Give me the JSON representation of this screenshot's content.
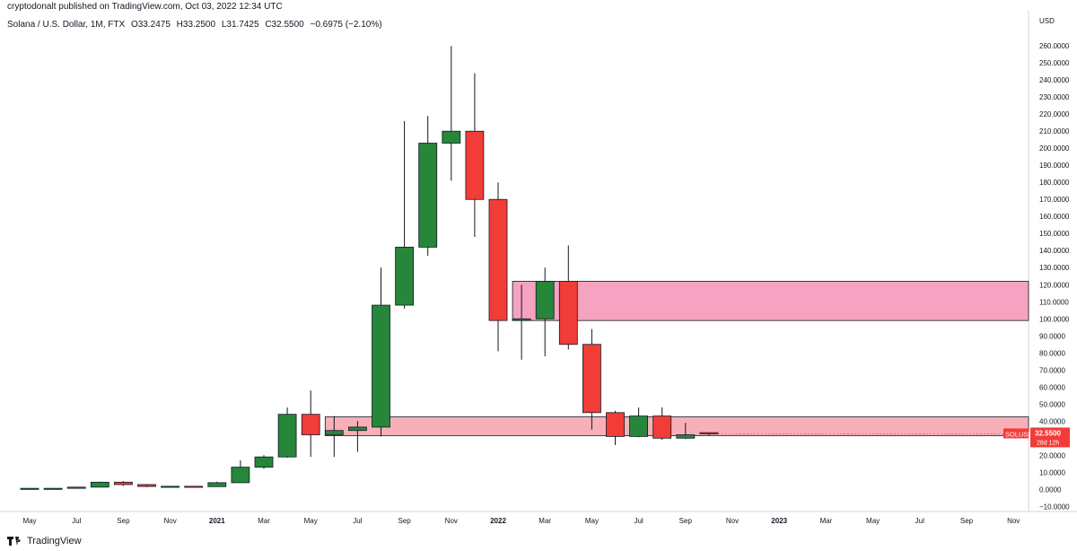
{
  "header": {
    "published_line": "cryptodonalt published on TradingView.com, Oct 03, 2022 12:34 UTC"
  },
  "legend": {
    "symbol_line": "Solana / U.S. Dollar, 1M, FTX",
    "open": "O33.2475",
    "high": "H33.2500",
    "low": "L31.7425",
    "close": "C32.5500",
    "change": "−0.6975 (−2.10%)"
  },
  "footer": {
    "brand": "TradingView"
  },
  "price_tag": {
    "symbol": "SOLUSD",
    "price": "32.5500",
    "countdown": "28d 12h"
  },
  "colors": {
    "up": "#26863a",
    "down": "#f23c37",
    "zone_upper": "#f5a3c0",
    "zone_lower": "#f7b0b8",
    "tag": "#f23c37"
  },
  "chart_data": {
    "type": "candlestick",
    "currency_label": "USD",
    "y_ticks": [
      "260.0000",
      "250.0000",
      "240.0000",
      "230.0000",
      "220.0000",
      "210.0000",
      "200.0000",
      "190.0000",
      "180.0000",
      "170.0000",
      "160.0000",
      "150.0000",
      "140.0000",
      "130.0000",
      "120.0000",
      "110.0000",
      "100.0000",
      "90.0000",
      "80.0000",
      "70.0000",
      "60.0000",
      "50.0000",
      "40.0000",
      "30.0000",
      "20.0000",
      "10.0000",
      "0.0000",
      "−10.0000"
    ],
    "ylim": [
      -13,
      268
    ],
    "x_labels": [
      "May",
      "Jul",
      "Sep",
      "Nov",
      "2021",
      "Mar",
      "May",
      "Jul",
      "Sep",
      "Nov",
      "2022",
      "Mar",
      "May",
      "Jul",
      "Sep",
      "Nov",
      "2023",
      "Mar",
      "May",
      "Jul",
      "Sep",
      "Nov"
    ],
    "x_label_months": [
      0,
      2,
      4,
      6,
      8,
      10,
      12,
      14,
      16,
      18,
      20,
      22,
      24,
      26,
      28,
      30,
      32,
      34,
      36,
      38,
      40,
      42
    ],
    "month_range": [
      0,
      43
    ],
    "candles": [
      {
        "m": 0,
        "o": 0.5,
        "h": 0.8,
        "l": 0.3,
        "c": 0.6
      },
      {
        "m": 1,
        "o": 0.6,
        "h": 0.9,
        "l": 0.4,
        "c": 0.6
      },
      {
        "m": 2,
        "o": 0.6,
        "h": 1.5,
        "l": 0.5,
        "c": 1.3
      },
      {
        "m": 3,
        "o": 1.3,
        "h": 4.5,
        "l": 1.2,
        "c": 4.2
      },
      {
        "m": 4,
        "o": 4.2,
        "h": 4.8,
        "l": 2.0,
        "c": 2.8
      },
      {
        "m": 5,
        "o": 2.8,
        "h": 3.0,
        "l": 1.3,
        "c": 1.7
      },
      {
        "m": 6,
        "o": 1.7,
        "h": 2.1,
        "l": 1.3,
        "c": 1.8
      },
      {
        "m": 7,
        "o": 1.8,
        "h": 2.0,
        "l": 1.4,
        "c": 1.6
      },
      {
        "m": 8,
        "o": 1.6,
        "h": 4.5,
        "l": 1.5,
        "c": 3.9
      },
      {
        "m": 9,
        "o": 3.9,
        "h": 17.0,
        "l": 3.8,
        "c": 13.0
      },
      {
        "m": 10,
        "o": 13.0,
        "h": 20.0,
        "l": 12.0,
        "c": 19.0
      },
      {
        "m": 11,
        "o": 19.0,
        "h": 48.0,
        "l": 18.5,
        "c": 44.0
      },
      {
        "m": 12,
        "o": 44.0,
        "h": 58.0,
        "l": 19.0,
        "c": 32.0
      },
      {
        "m": 13,
        "o": 32.0,
        "h": 43.0,
        "l": 19.0,
        "c": 34.5
      },
      {
        "m": 14,
        "o": 34.5,
        "h": 40.0,
        "l": 22.0,
        "c": 36.5
      },
      {
        "m": 15,
        "o": 36.5,
        "h": 130.0,
        "l": 31.0,
        "c": 108.0
      },
      {
        "m": 16,
        "o": 108.0,
        "h": 216.0,
        "l": 106.0,
        "c": 142.0
      },
      {
        "m": 17,
        "o": 142.0,
        "h": 219.0,
        "l": 137.0,
        "c": 203.0
      },
      {
        "m": 18,
        "o": 203.0,
        "h": 260.0,
        "l": 181.0,
        "c": 210.0
      },
      {
        "m": 19,
        "o": 210.0,
        "h": 244.0,
        "l": 148.0,
        "c": 170.0
      },
      {
        "m": 20,
        "o": 170.0,
        "h": 180.0,
        "l": 81.0,
        "c": 99.0
      },
      {
        "m": 21,
        "o": 99.0,
        "h": 120.0,
        "l": 76.0,
        "c": 100.0
      },
      {
        "m": 22,
        "o": 100.0,
        "h": 130.0,
        "l": 78.0,
        "c": 122.0
      },
      {
        "m": 23,
        "o": 122.0,
        "h": 143.0,
        "l": 82.0,
        "c": 85.0
      },
      {
        "m": 24,
        "o": 85.0,
        "h": 94.0,
        "l": 35.0,
        "c": 45.0
      },
      {
        "m": 25,
        "o": 45.0,
        "h": 46.0,
        "l": 26.0,
        "c": 31.0
      },
      {
        "m": 26,
        "o": 31.0,
        "h": 48.0,
        "l": 30.5,
        "c": 43.0
      },
      {
        "m": 27,
        "o": 43.0,
        "h": 48.0,
        "l": 29.0,
        "c": 30.0
      },
      {
        "m": 28,
        "o": 30.0,
        "h": 39.0,
        "l": 29.5,
        "c": 32.0
      },
      {
        "m": 29,
        "o": 33.2475,
        "h": 33.25,
        "l": 31.7425,
        "c": 32.55
      }
    ],
    "zones": [
      {
        "from_month": 21,
        "low": 99.0,
        "high": 122.0,
        "color": "#f5a3c0"
      },
      {
        "from_month": 13,
        "low": 31.5,
        "high": 42.5,
        "color": "#f7b0b8"
      }
    ]
  }
}
